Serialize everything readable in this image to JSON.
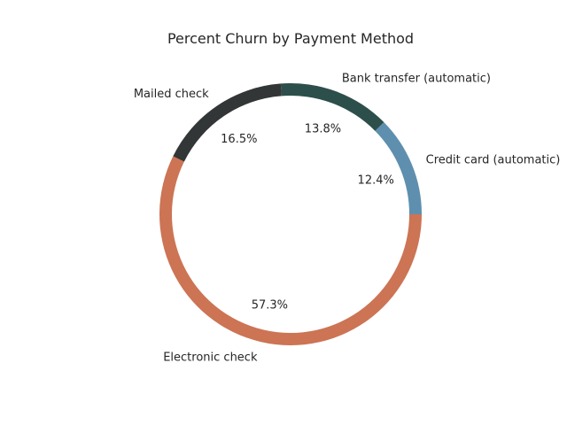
{
  "chart_data": {
    "type": "pie",
    "variant": "donut",
    "title": "Percent Churn by Payment Method",
    "start_angle": 0,
    "direction": "counterclockwise",
    "slices": [
      {
        "label": "Credit card (automatic)",
        "value": 12.4,
        "pct_label": "12.4%",
        "color": "#5f8fae"
      },
      {
        "label": "Bank transfer (automatic)",
        "value": 13.8,
        "pct_label": "13.8%",
        "color": "#2d4f4b"
      },
      {
        "label": "Mailed check",
        "value": 16.5,
        "pct_label": "16.5%",
        "color": "#333636"
      },
      {
        "label": "Electronic check",
        "value": 57.3,
        "pct_label": "57.3%",
        "color": "#cc7454"
      }
    ]
  }
}
